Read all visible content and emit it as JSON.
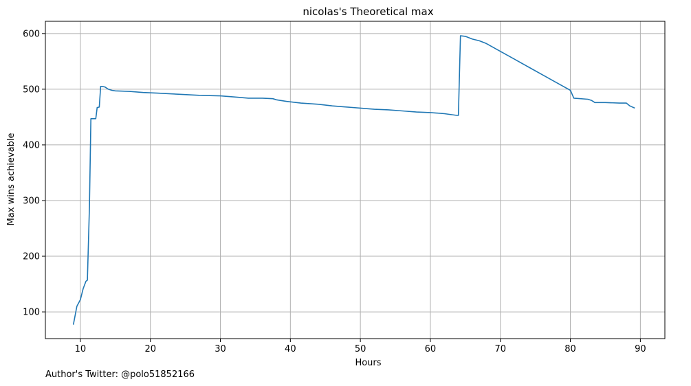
{
  "chart_data": {
    "type": "line",
    "title": "nicolas's Theoretical max",
    "xlabel": "Hours",
    "ylabel": "Max wins achievable",
    "xlim": [
      5,
      93.5
    ],
    "ylim": [
      52,
      622
    ],
    "xticks": [
      10,
      20,
      30,
      40,
      50,
      60,
      70,
      80,
      90
    ],
    "yticks": [
      100,
      200,
      300,
      400,
      500,
      600
    ],
    "grid": true,
    "series": [
      {
        "color": "#1f77b4",
        "x": [
          9.0,
          9.5,
          10.0,
          10.4,
          10.8,
          11.0,
          11.3,
          11.5,
          12.0,
          12.2,
          12.4,
          12.7,
          12.9,
          13.1,
          13.5,
          14.0,
          14.5,
          15.0,
          17.0,
          19.0,
          21.0,
          24.0,
          27.0,
          30.0,
          32.0,
          34.0,
          36.0,
          37.5,
          38.0,
          39.5,
          41.5,
          44.0,
          46.0,
          48.0,
          50.0,
          52.0,
          54.0,
          56.0,
          58.0,
          60.0,
          62.0,
          63.8,
          64.0,
          64.3,
          65.0,
          66.0,
          67.0,
          68.0,
          70.0,
          72.0,
          74.0,
          76.0,
          78.0,
          80.0,
          80.5,
          82.5,
          83.0,
          83.5,
          85.0,
          87.0,
          88.0,
          88.5,
          89.2
        ],
        "y": [
          77,
          110,
          122,
          142,
          155,
          157,
          290,
          447,
          447,
          447,
          467,
          468,
          505,
          505,
          504,
          500,
          498,
          497,
          496,
          494,
          493,
          491,
          489,
          488,
          486,
          484,
          484,
          483,
          481,
          478,
          475,
          473,
          470,
          468,
          466,
          464,
          463,
          461,
          459,
          458,
          456,
          453,
          453,
          596,
          595,
          590,
          587,
          582,
          568,
          554,
          540,
          526,
          512,
          498,
          484,
          482,
          480,
          476,
          476,
          475,
          475,
          470,
          466
        ]
      }
    ]
  },
  "footer_note": "Author's Twitter: @polo51852166"
}
